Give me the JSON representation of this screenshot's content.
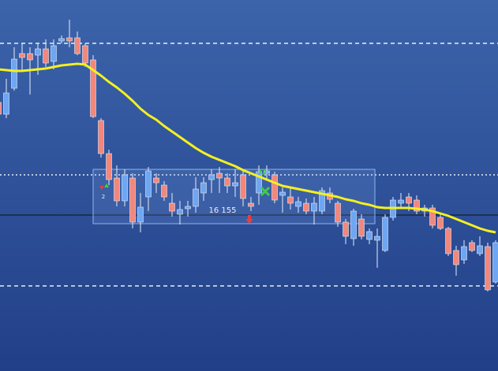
{
  "chart_data": {
    "type": "candlestick",
    "ylim": [
      129,
      600
    ],
    "up_color": "#6ea6f2",
    "down_color": "#f2877c",
    "open": [
      470,
      455,
      488,
      532,
      532,
      530,
      538,
      522,
      548,
      552,
      552,
      542,
      524,
      447,
      405,
      374,
      345,
      374,
      318,
      350,
      374,
      365,
      342,
      328,
      335,
      338,
      355,
      372,
      380,
      374,
      364,
      378,
      342,
      355,
      380,
      378,
      352,
      350,
      338,
      342,
      332,
      332,
      355,
      342,
      318,
      297,
      322,
      296,
      295,
      282,
      324,
      342,
      350,
      346,
      332,
      336,
      324,
      310,
      282,
      270,
      292,
      278,
      287,
      242
    ],
    "high": [
      472,
      500,
      540,
      545,
      540,
      545,
      550,
      550,
      555,
      575,
      560,
      545,
      530,
      450,
      410,
      390,
      385,
      380,
      355,
      388,
      380,
      370,
      355,
      345,
      345,
      375,
      375,
      385,
      388,
      380,
      385,
      385,
      350,
      390,
      390,
      382,
      362,
      362,
      350,
      348,
      350,
      362,
      362,
      345,
      322,
      335,
      328,
      310,
      310,
      328,
      350,
      355,
      355,
      352,
      340,
      340,
      330,
      312,
      288,
      295,
      295,
      300,
      292,
      295
    ],
    "low": [
      453,
      450,
      485,
      510,
      480,
      505,
      515,
      512,
      545,
      540,
      530,
      515,
      450,
      400,
      365,
      338,
      338,
      310,
      305,
      332,
      355,
      345,
      325,
      315,
      325,
      330,
      345,
      355,
      355,
      355,
      350,
      338,
      332,
      340,
      372,
      342,
      330,
      334,
      330,
      328,
      315,
      328,
      342,
      312,
      290,
      288,
      296,
      290,
      260,
      280,
      320,
      335,
      332,
      328,
      325,
      310,
      308,
      275,
      250,
      265,
      280,
      275,
      230,
      240
    ],
    "close": [
      455,
      482,
      525,
      527,
      524,
      538,
      520,
      542,
      551,
      548,
      532,
      520,
      452,
      405,
      372,
      345,
      378,
      318,
      337,
      383,
      368,
      350,
      332,
      334,
      338,
      360,
      368,
      378,
      374,
      364,
      368,
      348,
      338,
      382,
      383,
      346,
      356,
      342,
      344,
      332,
      342,
      358,
      347,
      318,
      300,
      332,
      300,
      306,
      300,
      324,
      346,
      346,
      342,
      332,
      336,
      314,
      310,
      278,
      264,
      287,
      282,
      288,
      232,
      292
    ],
    "moving_average": {
      "color": "#f4f020",
      "values": [
        512,
        511,
        510,
        510,
        511,
        512,
        513,
        515,
        517,
        518,
        519,
        518,
        511,
        504,
        496,
        489,
        481,
        472,
        462,
        454,
        448,
        440,
        433,
        426,
        419,
        412,
        406,
        401,
        397,
        393,
        389,
        384,
        380,
        376,
        372,
        368,
        364,
        362,
        360,
        358,
        356,
        354,
        352,
        350,
        347,
        345,
        342,
        340,
        337,
        336,
        336,
        336,
        336,
        335,
        334,
        332,
        329,
        326,
        322,
        318,
        314,
        310,
        307,
        305
      ]
    },
    "levels": [
      {
        "value": 545,
        "style": "dashed",
        "color": "#e8eef8"
      },
      {
        "value": 378,
        "style": "dotted",
        "color": "#e8eef8"
      },
      {
        "value": 327,
        "style": "solid",
        "color": "#111111"
      },
      {
        "value": 237,
        "style": "dashed",
        "color": "#e8eef8"
      }
    ],
    "annotation": "16 155",
    "trade_count": "2"
  }
}
